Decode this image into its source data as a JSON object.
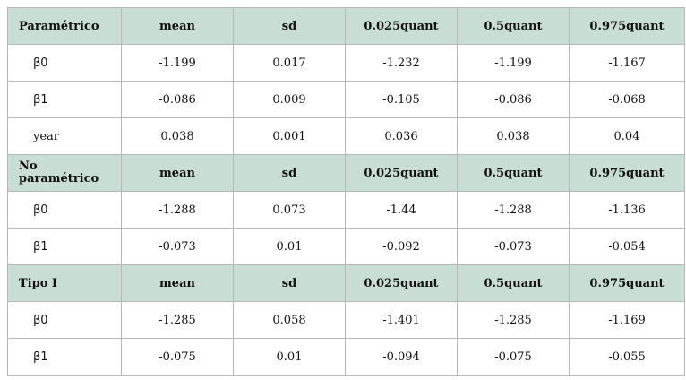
{
  "table": {
    "sections": [
      {
        "title": "Paramétrico",
        "headers": [
          "mean",
          "sd",
          "0.025quant",
          "0.5quant",
          "0.975quant"
        ],
        "rows": [
          {
            "label": "β0",
            "values": [
              "-1.199",
              "0.017",
              "-1.232",
              "-1.199",
              "-1.167"
            ]
          },
          {
            "label": "β1",
            "values": [
              "-0.086",
              "0.009",
              "-0.105",
              "-0.086",
              "-0.068"
            ]
          },
          {
            "label": "year",
            "values": [
              "0.038",
              "0.001",
              "0.036",
              "0.038",
              "0.04"
            ]
          }
        ]
      },
      {
        "title": "No paramétrico",
        "headers": [
          "mean",
          "sd",
          "0.025quant",
          "0.5quant",
          "0.975quant"
        ],
        "rows": [
          {
            "label": "β0",
            "values": [
              "-1.288",
              "0.073",
              "-1.44",
              "-1.288",
              "-1.136"
            ]
          },
          {
            "label": "β1",
            "values": [
              "-0.073",
              "0.01",
              "-0.092",
              "-0.073",
              "-0.054"
            ]
          }
        ]
      },
      {
        "title": "Tipo I",
        "headers": [
          "mean",
          "sd",
          "0.025quant",
          "0.5quant",
          "0.975quant"
        ],
        "rows": [
          {
            "label": "β0",
            "values": [
              "-1.285",
              "0.058",
              "-1.401",
              "-1.285",
              "-1.169"
            ]
          },
          {
            "label": "β1",
            "values": [
              "-0.075",
              "0.01",
              "-0.094",
              "-0.075",
              "-0.055"
            ]
          }
        ]
      }
    ]
  },
  "colors": {
    "section_header_background": "#c8ddd3",
    "border": "#b7b7b7",
    "text": "#111111"
  }
}
